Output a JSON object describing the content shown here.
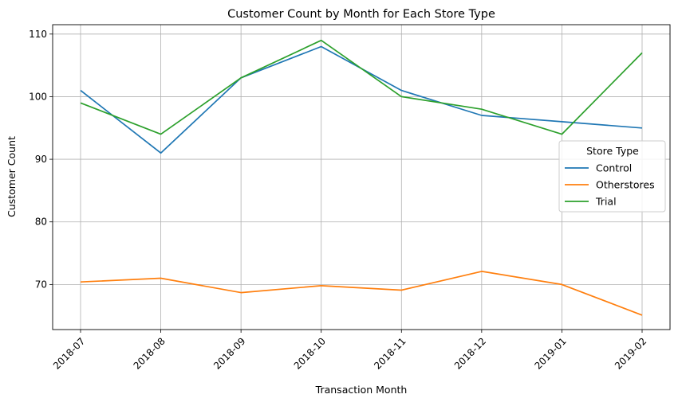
{
  "chart_data": {
    "type": "line",
    "title": "Customer Count by Month for Each Store Type",
    "xlabel": "Transaction Month",
    "ylabel": "Customer Count",
    "categories": [
      "2018-07",
      "2018-08",
      "2018-09",
      "2018-10",
      "2018-11",
      "2018-12",
      "2019-01",
      "2019-02"
    ],
    "yticks": [
      70,
      80,
      90,
      100,
      110
    ],
    "ylim": [
      62.8,
      111.5
    ],
    "grid": true,
    "legend": {
      "title": "Store Type",
      "placement": "center-right"
    },
    "series": [
      {
        "name": "Control",
        "color": "#1f77b4",
        "values": [
          101,
          91,
          103,
          108,
          101,
          97,
          96,
          95
        ]
      },
      {
        "name": "Otherstores",
        "color": "#ff7f0e",
        "values": [
          70.4,
          71.0,
          68.7,
          69.8,
          69.1,
          72.1,
          70.0,
          65.1
        ]
      },
      {
        "name": "Trial",
        "color": "#2ca02c",
        "values": [
          99,
          94,
          103,
          109,
          100,
          98,
          94,
          107
        ]
      }
    ]
  }
}
